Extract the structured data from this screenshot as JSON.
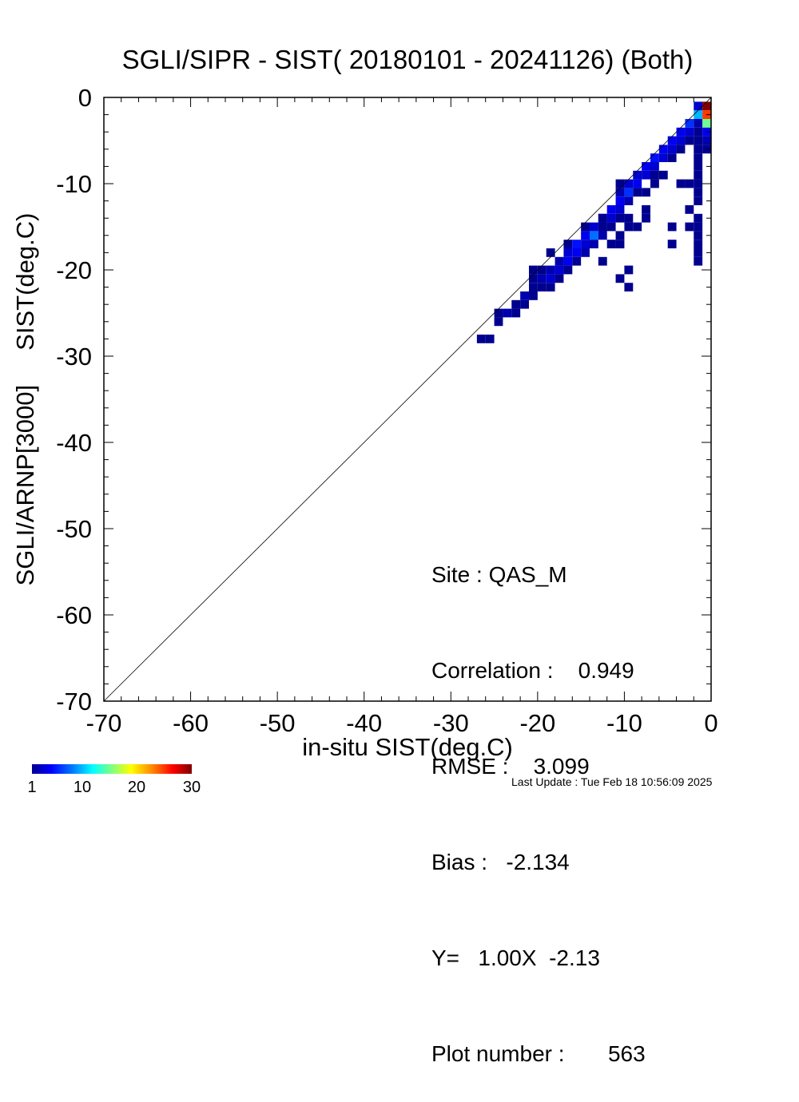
{
  "chart_data": {
    "type": "heatmap",
    "title": "SGLI/SIPR - SIST( 20180101 - 20241126) (Both)",
    "xlabel": "in-situ SIST(deg.C)",
    "ylabel": "SGLI/ARNP[3000]     SIST(deg.C)",
    "xlim": [
      -70,
      0
    ],
    "ylim": [
      -70,
      0
    ],
    "x_ticks": [
      "-70",
      "-60",
      "-50",
      "-40",
      "-30",
      "-20",
      "-10",
      "0"
    ],
    "y_ticks": [
      "0",
      "-10",
      "-20",
      "-30",
      "-40",
      "-50",
      "-60",
      "-70"
    ],
    "reference_line": "1:1",
    "cell_size": 1,
    "cells": [
      [
        -26,
        -28,
        1
      ],
      [
        -25,
        -28,
        1
      ],
      [
        -24,
        -26,
        1
      ],
      [
        -24,
        -25,
        1
      ],
      [
        -23,
        -25,
        2
      ],
      [
        -22,
        -25,
        1
      ],
      [
        -22,
        -24,
        1
      ],
      [
        -21,
        -24,
        1
      ],
      [
        -21,
        -23,
        2
      ],
      [
        -20,
        -23,
        1
      ],
      [
        -20,
        -22,
        1
      ],
      [
        -19,
        -21,
        2
      ],
      [
        -19,
        -22,
        1
      ],
      [
        -18,
        -21,
        3
      ],
      [
        -18,
        -20,
        2
      ],
      [
        -18,
        -22,
        1
      ],
      [
        -19,
        -20,
        1
      ],
      [
        -20,
        -20,
        1
      ],
      [
        -17,
        -20,
        3
      ],
      [
        -17,
        -19,
        2
      ],
      [
        -17,
        -21,
        1
      ],
      [
        -16,
        -19,
        4
      ],
      [
        -16,
        -18,
        3
      ],
      [
        -16,
        -20,
        1
      ],
      [
        -15,
        -18,
        4
      ],
      [
        -15,
        -17,
        5
      ],
      [
        -15,
        -19,
        1
      ],
      [
        -14,
        -17,
        3
      ],
      [
        -14,
        -16,
        4
      ],
      [
        -14,
        -18,
        2
      ],
      [
        -13,
        -16,
        8
      ],
      [
        -13,
        -15,
        3
      ],
      [
        -13,
        -17,
        2
      ],
      [
        -12,
        -15,
        4
      ],
      [
        -12,
        -14,
        3
      ],
      [
        -12,
        -16,
        2
      ],
      [
        -11,
        -14,
        3
      ],
      [
        -11,
        -13,
        4
      ],
      [
        -11,
        -15,
        1
      ],
      [
        -10,
        -13,
        3
      ],
      [
        -10,
        -12,
        4
      ],
      [
        -10,
        -11,
        2
      ],
      [
        -9,
        -12,
        2
      ],
      [
        -9,
        -11,
        6
      ],
      [
        -9,
        -10,
        3
      ],
      [
        -8,
        -10,
        4
      ],
      [
        -8,
        -9,
        3
      ],
      [
        -8,
        -11,
        1
      ],
      [
        -7,
        -9,
        3
      ],
      [
        -7,
        -8,
        4
      ],
      [
        -6,
        -8,
        3
      ],
      [
        -6,
        -7,
        5
      ],
      [
        -6,
        -9,
        1
      ],
      [
        -5,
        -7,
        3
      ],
      [
        -5,
        -6,
        4
      ],
      [
        -4,
        -6,
        3
      ],
      [
        -4,
        -5,
        4
      ],
      [
        -4,
        -7,
        1
      ],
      [
        -3,
        -5,
        3
      ],
      [
        -3,
        -4,
        4
      ],
      [
        -3,
        -6,
        1
      ],
      [
        -2,
        -3,
        6
      ],
      [
        -2,
        -4,
        3
      ],
      [
        -2,
        -5,
        1
      ],
      [
        -1,
        -2,
        10
      ],
      [
        -1,
        -1,
        3
      ],
      [
        -1,
        -3,
        2
      ],
      [
        -12,
        -14,
        1
      ],
      [
        -12,
        -15,
        1
      ],
      [
        -10,
        -14,
        1
      ],
      [
        -14,
        -15,
        1
      ],
      [
        -16,
        -17,
        1
      ],
      [
        -18,
        -18,
        1
      ],
      [
        -20,
        -21,
        1
      ],
      [
        -11,
        -17,
        1
      ],
      [
        -10,
        -17,
        1
      ],
      [
        -10,
        -16,
        1
      ],
      [
        -10,
        -10,
        1
      ],
      [
        -9,
        -14,
        1
      ],
      [
        -9,
        -15,
        1
      ],
      [
        -8,
        -15,
        1
      ],
      [
        -7,
        -14,
        1
      ],
      [
        -7,
        -13,
        1
      ],
      [
        -7,
        -11,
        1
      ],
      [
        -6,
        -10,
        1
      ],
      [
        -5,
        -9,
        1
      ],
      [
        -12,
        -19,
        1
      ],
      [
        -9,
        -20,
        1
      ],
      [
        -10,
        -21,
        1
      ],
      [
        -9,
        -22,
        1
      ],
      [
        -4,
        -17,
        1
      ],
      [
        -4,
        -15,
        1
      ],
      [
        -3,
        -10,
        1
      ],
      [
        -2,
        -13,
        1
      ],
      [
        -2,
        -10,
        1
      ],
      [
        -2,
        -15,
        1
      ],
      [
        -1,
        -10,
        1
      ],
      [
        -1,
        -11,
        1
      ],
      [
        -1,
        -4,
        1
      ],
      [
        -1,
        -5,
        1
      ],
      [
        -1,
        -6,
        1
      ],
      [
        -1,
        -7,
        1
      ],
      [
        -1,
        -8,
        1
      ],
      [
        -1,
        -9,
        1
      ],
      [
        -1,
        -12,
        1
      ],
      [
        -1,
        -14,
        1
      ],
      [
        -1,
        -15,
        1
      ],
      [
        -1,
        -16,
        1
      ],
      [
        -1,
        -17,
        1
      ],
      [
        -1,
        -18,
        1
      ],
      [
        -1,
        -19,
        1
      ],
      [
        0,
        -1,
        30
      ],
      [
        0,
        -2,
        25
      ],
      [
        0,
        -3,
        15
      ],
      [
        0,
        -4,
        4
      ],
      [
        0,
        -5,
        2
      ],
      [
        0,
        -6,
        1
      ]
    ],
    "colorbar": {
      "min": 1,
      "max": 30,
      "tick_labels": [
        "1",
        "10",
        "20",
        "30"
      ]
    }
  },
  "stats": {
    "site": "Site : QAS_M",
    "correlation": "Correlation :    0.949",
    "rmse": "RMSE :    3.099",
    "bias": "Bias :   -2.134",
    "fit": "Y=   1.00X  -2.13",
    "plot_number": "Plot number :       563"
  },
  "last_update": "Last Update : Tue Feb 18 10:56:09 2025"
}
